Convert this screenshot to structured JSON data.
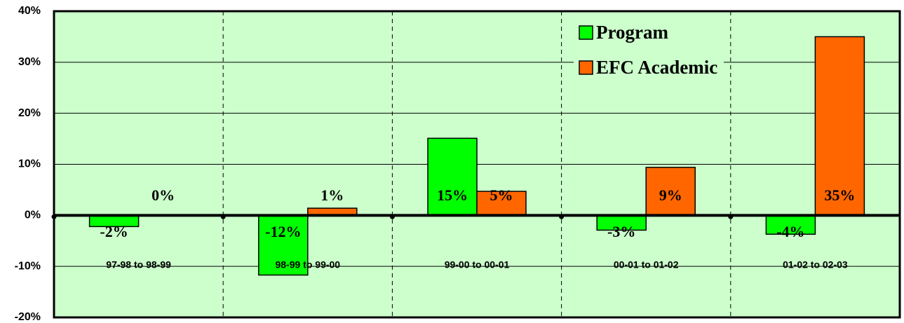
{
  "chart_data": {
    "type": "bar",
    "categories": [
      "97-98 to 98-99",
      "98-99 to 99-00",
      "99-00 to 00-01",
      "00-01 to 01-02",
      "01-02 to 02-03"
    ],
    "series": [
      {
        "name": "Program",
        "color": "#00ff00",
        "values": [
          -2.2,
          -11.7,
          15.1,
          -2.9,
          -3.7
        ],
        "value_labels": [
          "-2%",
          "-12%",
          "15%",
          "-3%",
          "-4%"
        ]
      },
      {
        "name": "EFC Academic",
        "color": "#ff6600",
        "values": [
          0,
          1.4,
          4.7,
          9.4,
          35
        ],
        "value_labels": [
          "0%",
          "1%",
          "5%",
          "9%",
          "35%"
        ]
      }
    ],
    "ylim": [
      -20,
      40
    ],
    "yticks": [
      {
        "value": -20,
        "label": "-20%"
      },
      {
        "value": -10,
        "label": "-10%"
      },
      {
        "value": 0,
        "label": "0%"
      },
      {
        "value": 10,
        "label": "10%"
      },
      {
        "value": 20,
        "label": "20%"
      },
      {
        "value": 30,
        "label": "30%"
      },
      {
        "value": 40,
        "label": "40%"
      }
    ],
    "grid": true
  }
}
